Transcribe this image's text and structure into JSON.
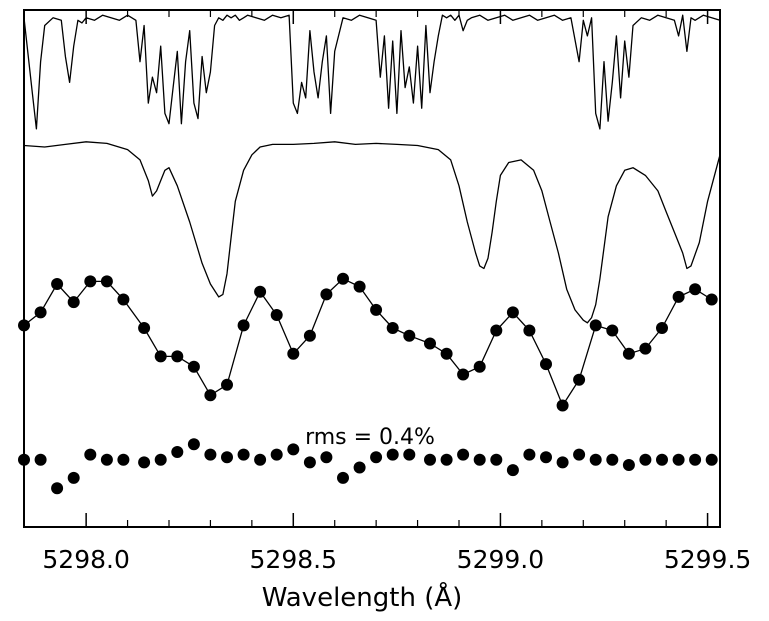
{
  "chart_data": {
    "type": "line",
    "title": "",
    "xlabel": "Wavelength (Å)",
    "ylabel": "",
    "xlim": [
      5297.85,
      5299.53
    ],
    "ylim": [
      0,
      10
    ],
    "grid": false,
    "legend": "none",
    "x_ticks": [
      5298.0,
      5298.5,
      5299.0,
      5299.5
    ],
    "x_tick_labels": [
      "5298.0",
      "5298.5",
      "5299.0",
      "5299.5"
    ],
    "annotation": {
      "text": "rms = 0.4%",
      "x": 5298.71,
      "y": 1.9
    },
    "series": [
      {
        "style": "line",
        "color": "#000000",
        "x": [
          5297.85,
          5297.87,
          5297.88,
          5297.89,
          5297.9,
          5297.92,
          5297.94,
          5297.95,
          5297.96,
          5297.97,
          5297.98,
          5297.99,
          5298.0,
          5298.02,
          5298.04,
          5298.06,
          5298.08,
          5298.1,
          5298.12,
          5298.13,
          5298.14,
          5298.15,
          5298.16,
          5298.17,
          5298.18,
          5298.19,
          5298.2,
          5298.21,
          5298.22,
          5298.23,
          5298.24,
          5298.25,
          5298.26,
          5298.27,
          5298.28,
          5298.29,
          5298.3,
          5298.31,
          5298.32,
          5298.33,
          5298.34,
          5298.35,
          5298.36,
          5298.37,
          5298.38,
          5298.39,
          5298.41,
          5298.43,
          5298.45,
          5298.47,
          5298.49,
          5298.5,
          5298.51,
          5298.52,
          5298.53,
          5298.54,
          5298.55,
          5298.56,
          5298.57,
          5298.58,
          5298.59,
          5298.6,
          5298.62,
          5298.64,
          5298.66,
          5298.68,
          5298.7,
          5298.71,
          5298.72,
          5298.73,
          5298.74,
          5298.75,
          5298.76,
          5298.77,
          5298.78,
          5298.79,
          5298.8,
          5298.81,
          5298.82,
          5298.83,
          5298.84,
          5298.85,
          5298.86,
          5298.87,
          5298.88,
          5298.89,
          5298.9,
          5298.91,
          5298.92,
          5298.93,
          5298.95,
          5298.97,
          5298.99,
          5299.01,
          5299.03,
          5299.05,
          5299.07,
          5299.09,
          5299.11,
          5299.13,
          5299.15,
          5299.17,
          5299.19,
          5299.2,
          5299.21,
          5299.22,
          5299.23,
          5299.24,
          5299.25,
          5299.26,
          5299.27,
          5299.28,
          5299.29,
          5299.3,
          5299.31,
          5299.32,
          5299.34,
          5299.36,
          5299.38,
          5299.4,
          5299.42,
          5299.43,
          5299.44,
          5299.45,
          5299.46,
          5299.47,
          5299.49,
          5299.51,
          5299.53
        ],
        "y": [
          9.85,
          8.4,
          7.7,
          9.0,
          9.7,
          9.85,
          9.8,
          9.1,
          8.6,
          9.3,
          9.8,
          9.75,
          9.85,
          9.8,
          9.9,
          9.85,
          9.8,
          9.9,
          9.8,
          9.0,
          9.7,
          8.2,
          8.7,
          8.4,
          9.3,
          8.0,
          7.8,
          8.5,
          9.2,
          7.8,
          9.0,
          9.6,
          8.2,
          7.9,
          9.1,
          8.4,
          8.8,
          9.7,
          9.85,
          9.8,
          9.9,
          9.85,
          9.9,
          9.8,
          9.85,
          9.9,
          9.85,
          9.8,
          9.9,
          9.85,
          9.9,
          8.2,
          8.0,
          8.6,
          8.3,
          9.6,
          8.8,
          8.3,
          9.0,
          9.5,
          8.0,
          9.2,
          9.85,
          9.8,
          9.9,
          9.85,
          9.8,
          8.7,
          9.5,
          8.1,
          9.4,
          8.0,
          9.6,
          8.5,
          8.9,
          8.2,
          9.3,
          8.1,
          9.7,
          8.4,
          9.0,
          9.5,
          9.9,
          9.85,
          9.9,
          9.8,
          9.9,
          9.6,
          9.8,
          9.85,
          9.9,
          9.8,
          9.85,
          9.9,
          9.8,
          9.85,
          9.9,
          9.8,
          9.85,
          9.9,
          9.8,
          9.85,
          9.0,
          9.8,
          9.5,
          9.85,
          8.0,
          7.7,
          9.0,
          7.85,
          8.6,
          9.5,
          8.3,
          9.4,
          8.7,
          9.7,
          9.85,
          9.8,
          9.9,
          9.85,
          9.8,
          9.5,
          9.9,
          9.2,
          9.85,
          9.8,
          9.9,
          9.85,
          9.8
        ]
      },
      {
        "style": "line",
        "color": "#000000",
        "x": [
          5297.85,
          5297.9,
          5297.95,
          5298.0,
          5298.05,
          5298.1,
          5298.13,
          5298.15,
          5298.16,
          5298.17,
          5298.18,
          5298.19,
          5298.2,
          5298.22,
          5298.25,
          5298.28,
          5298.3,
          5298.32,
          5298.33,
          5298.34,
          5298.35,
          5298.36,
          5298.38,
          5298.4,
          5298.42,
          5298.45,
          5298.5,
          5298.55,
          5298.6,
          5298.65,
          5298.7,
          5298.75,
          5298.8,
          5298.85,
          5298.88,
          5298.9,
          5298.92,
          5298.94,
          5298.95,
          5298.96,
          5298.97,
          5298.98,
          5298.99,
          5299.0,
          5299.02,
          5299.05,
          5299.08,
          5299.1,
          5299.12,
          5299.14,
          5299.16,
          5299.18,
          5299.2,
          5299.21,
          5299.22,
          5299.23,
          5299.24,
          5299.25,
          5299.26,
          5299.28,
          5299.3,
          5299.32,
          5299.35,
          5299.38,
          5299.4,
          5299.42,
          5299.44,
          5299.45,
          5299.46,
          5299.48,
          5299.5,
          5299.53
        ],
        "y": [
          7.38,
          7.35,
          7.4,
          7.45,
          7.42,
          7.3,
          7.1,
          6.7,
          6.4,
          6.5,
          6.7,
          6.9,
          6.95,
          6.6,
          5.9,
          5.1,
          4.7,
          4.45,
          4.5,
          4.9,
          5.6,
          6.3,
          6.9,
          7.2,
          7.35,
          7.4,
          7.4,
          7.42,
          7.45,
          7.4,
          7.42,
          7.4,
          7.38,
          7.3,
          7.1,
          6.6,
          5.9,
          5.3,
          5.05,
          5.0,
          5.2,
          5.7,
          6.3,
          6.8,
          7.05,
          7.1,
          6.9,
          6.5,
          5.9,
          5.3,
          4.6,
          4.2,
          4.0,
          3.95,
          4.05,
          4.3,
          4.8,
          5.4,
          6.0,
          6.6,
          6.9,
          6.95,
          6.8,
          6.5,
          6.1,
          5.7,
          5.3,
          5.0,
          5.05,
          5.5,
          6.3,
          7.2
        ]
      },
      {
        "style": "line+markers",
        "color": "#000000",
        "x": [
          5297.85,
          5297.89,
          5297.93,
          5297.97,
          5298.01,
          5298.05,
          5298.09,
          5298.14,
          5298.18,
          5298.22,
          5298.26,
          5298.3,
          5298.34,
          5298.38,
          5298.42,
          5298.46,
          5298.5,
          5298.54,
          5298.58,
          5298.62,
          5298.66,
          5298.7,
          5298.74,
          5298.78,
          5298.83,
          5298.87,
          5298.91,
          5298.95,
          5298.99,
          5299.03,
          5299.07,
          5299.11,
          5299.15,
          5299.19,
          5299.23,
          5299.27,
          5299.31,
          5299.35,
          5299.39,
          5299.43,
          5299.47,
          5299.51
        ],
        "y": [
          3.9,
          4.15,
          4.7,
          4.35,
          4.75,
          4.75,
          4.4,
          3.85,
          3.3,
          3.3,
          3.1,
          2.55,
          2.75,
          3.9,
          4.55,
          4.1,
          3.35,
          3.7,
          4.5,
          4.8,
          4.65,
          4.2,
          3.85,
          3.7,
          3.55,
          3.35,
          2.95,
          3.1,
          3.8,
          4.15,
          3.8,
          3.15,
          2.35,
          2.85,
          3.9,
          3.8,
          3.35,
          3.45,
          3.85,
          4.45,
          4.6,
          4.4
        ]
      },
      {
        "style": "markers",
        "color": "#000000",
        "x": [
          5297.85,
          5297.89,
          5297.93,
          5297.97,
          5298.01,
          5298.05,
          5298.09,
          5298.14,
          5298.18,
          5298.22,
          5298.26,
          5298.3,
          5298.34,
          5298.38,
          5298.42,
          5298.46,
          5298.5,
          5298.54,
          5298.58,
          5298.62,
          5298.66,
          5298.7,
          5298.74,
          5298.78,
          5298.83,
          5298.87,
          5298.91,
          5298.95,
          5298.99,
          5299.03,
          5299.07,
          5299.11,
          5299.15,
          5299.19,
          5299.23,
          5299.27,
          5299.31,
          5299.35,
          5299.39,
          5299.43,
          5299.47,
          5299.51
        ],
        "y": [
          1.3,
          1.3,
          0.75,
          0.95,
          1.4,
          1.3,
          1.3,
          1.25,
          1.3,
          1.45,
          1.6,
          1.4,
          1.35,
          1.4,
          1.3,
          1.4,
          1.5,
          1.25,
          1.35,
          0.95,
          1.15,
          1.35,
          1.4,
          1.4,
          1.3,
          1.3,
          1.4,
          1.3,
          1.3,
          1.1,
          1.4,
          1.35,
          1.25,
          1.4,
          1.3,
          1.3,
          1.2,
          1.3,
          1.3,
          1.3,
          1.3,
          1.3
        ]
      }
    ]
  }
}
